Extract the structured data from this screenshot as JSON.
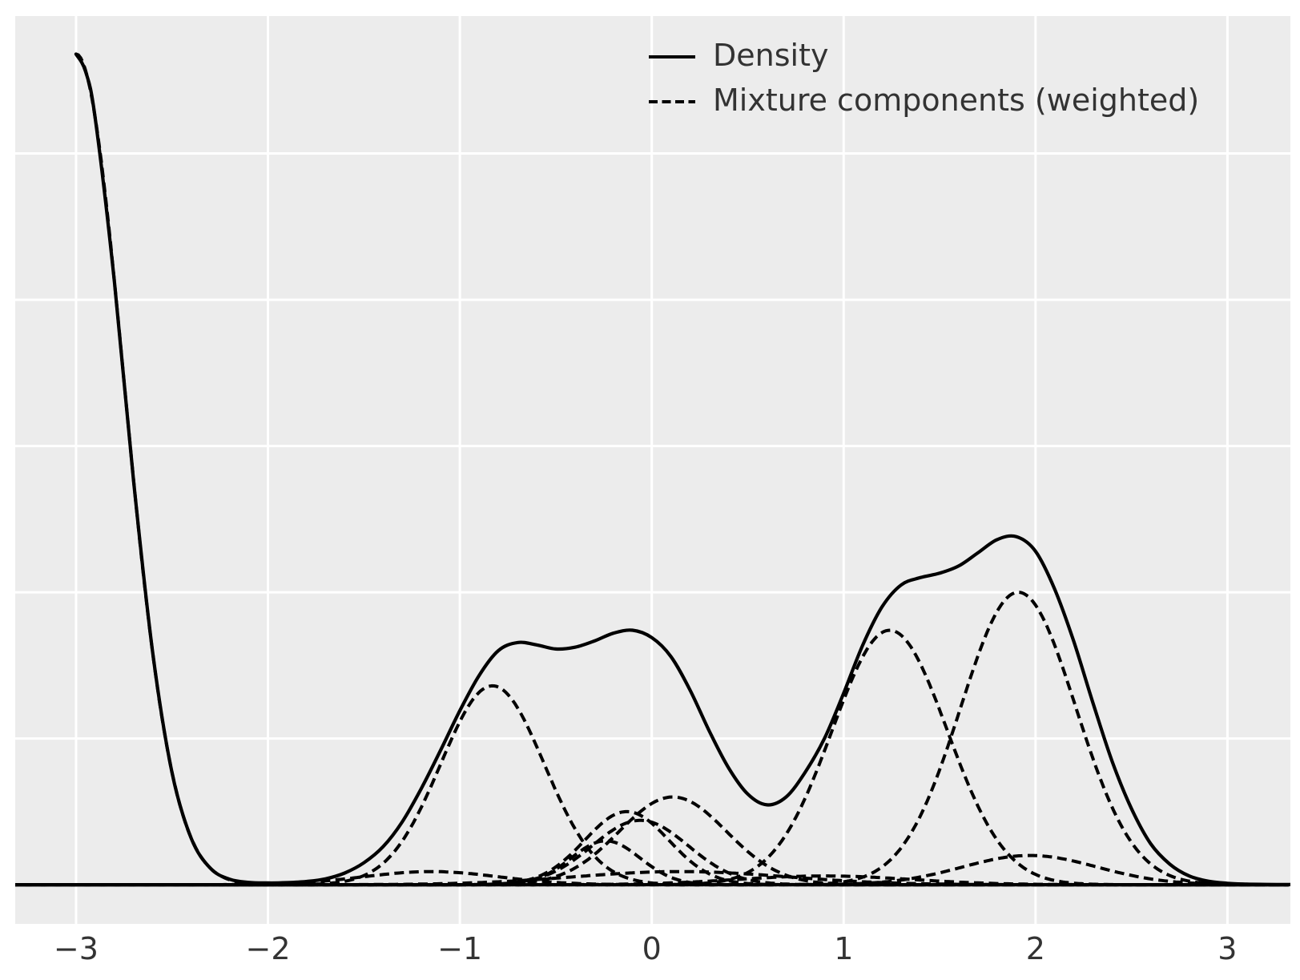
{
  "style": {
    "figure_bg": "#ffffff",
    "axes_bg": "#ececec",
    "grid_color": "#ffffff",
    "line_color": "#000000",
    "tick_label_color": "#333333",
    "legend_text_color": "#333333"
  },
  "chart_data": {
    "type": "line",
    "title": "",
    "xlabel": "",
    "ylabel": "",
    "xlim": [
      -3.317,
      3.328
    ],
    "ylim": [
      -0.134,
      2.97
    ],
    "x_ticks": [
      {
        "value": -3,
        "label": "−3"
      },
      {
        "value": -2,
        "label": "−2"
      },
      {
        "value": -1,
        "label": "−1"
      },
      {
        "value": 0,
        "label": "0"
      },
      {
        "value": 1,
        "label": "1"
      },
      {
        "value": 2,
        "label": "2"
      },
      {
        "value": 3,
        "label": "3"
      }
    ],
    "y_ticks": {
      "values": [
        0,
        0.5,
        1.0,
        1.5,
        2.0,
        2.5
      ],
      "labels_hidden": true
    },
    "grid": {
      "enabled": true,
      "which": "major",
      "style": "white lines on gray axes background"
    },
    "legend": {
      "position": "upper right",
      "frame": false,
      "entries": [
        {
          "label": "Density",
          "style": "solid"
        },
        {
          "label": "Mixture components (weighted)",
          "style": "dashed"
        }
      ]
    },
    "series": [
      {
        "name": "Density",
        "style": "solid",
        "color": "#000000",
        "points": [
          [
            -3.0,
            2.84
          ],
          [
            -2.95,
            2.78
          ],
          [
            -2.9,
            2.62
          ],
          [
            -2.8,
            2.06
          ],
          [
            -2.7,
            1.38
          ],
          [
            -2.6,
            0.79
          ],
          [
            -2.5,
            0.384
          ],
          [
            -2.4,
            0.159
          ],
          [
            -2.3,
            0.056
          ],
          [
            -2.2,
            0.019
          ],
          [
            -2.1,
            0.008
          ],
          [
            -2.0,
            0.006
          ],
          [
            -1.9,
            0.007
          ],
          [
            -1.8,
            0.011
          ],
          [
            -1.7,
            0.02
          ],
          [
            -1.6,
            0.04
          ],
          [
            -1.5,
            0.075
          ],
          [
            -1.4,
            0.13
          ],
          [
            -1.3,
            0.215
          ],
          [
            -1.2,
            0.33
          ],
          [
            -1.1,
            0.46
          ],
          [
            -1.0,
            0.595
          ],
          [
            -0.9,
            0.715
          ],
          [
            -0.8,
            0.8
          ],
          [
            -0.7,
            0.828
          ],
          [
            -0.6,
            0.82
          ],
          [
            -0.5,
            0.806
          ],
          [
            -0.4,
            0.812
          ],
          [
            -0.3,
            0.833
          ],
          [
            -0.2,
            0.86
          ],
          [
            -0.1,
            0.87
          ],
          [
            0.0,
            0.845
          ],
          [
            0.1,
            0.78
          ],
          [
            0.2,
            0.665
          ],
          [
            0.3,
            0.525
          ],
          [
            0.4,
            0.4
          ],
          [
            0.5,
            0.31
          ],
          [
            0.6,
            0.273
          ],
          [
            0.7,
            0.3
          ],
          [
            0.8,
            0.385
          ],
          [
            0.9,
            0.5
          ],
          [
            1.0,
            0.655
          ],
          [
            1.1,
            0.82
          ],
          [
            1.2,
            0.95
          ],
          [
            1.3,
            1.025
          ],
          [
            1.4,
            1.05
          ],
          [
            1.5,
            1.065
          ],
          [
            1.6,
            1.09
          ],
          [
            1.7,
            1.135
          ],
          [
            1.8,
            1.18
          ],
          [
            1.9,
            1.19
          ],
          [
            2.0,
            1.14
          ],
          [
            2.1,
            1.01
          ],
          [
            2.2,
            0.83
          ],
          [
            2.3,
            0.62
          ],
          [
            2.4,
            0.42
          ],
          [
            2.5,
            0.26
          ],
          [
            2.6,
            0.14
          ],
          [
            2.7,
            0.07
          ],
          [
            2.8,
            0.03
          ],
          [
            2.9,
            0.012
          ],
          [
            3.0,
            0.005
          ],
          [
            3.1,
            0.002
          ],
          [
            3.2,
            0.001
          ],
          [
            3.33,
            0.0005
          ]
        ]
      },
      {
        "name": "Mixture components (weighted)",
        "style": "dashed",
        "color": "#000000",
        "gaussians": [
          {
            "mean": -3.0,
            "sd": 0.25,
            "peak": 2.84,
            "x_range": [
              -3.0,
              3.328
            ]
          },
          {
            "mean": -1.15,
            "sd": 0.35,
            "peak": 0.045
          },
          {
            "mean": -0.83,
            "sd": 0.27,
            "peak": 0.68
          },
          {
            "mean": -0.24,
            "sd": 0.18,
            "peak": 0.15
          },
          {
            "mean": -0.13,
            "sd": 0.22,
            "peak": 0.25
          },
          {
            "mean": -0.06,
            "sd": 0.25,
            "peak": 0.22
          },
          {
            "mean": 0.11,
            "sd": 0.28,
            "peak": 0.3
          },
          {
            "mean": 0.15,
            "sd": 0.55,
            "peak": 0.045
          },
          {
            "mean": 0.9,
            "sd": 0.45,
            "peak": 0.03
          },
          {
            "mean": 1.24,
            "sd": 0.3,
            "peak": 0.87
          },
          {
            "mean": 1.91,
            "sd": 0.3,
            "peak": 1.0
          },
          {
            "mean": 1.97,
            "sd": 0.35,
            "peak": 0.1
          }
        ]
      }
    ]
  }
}
